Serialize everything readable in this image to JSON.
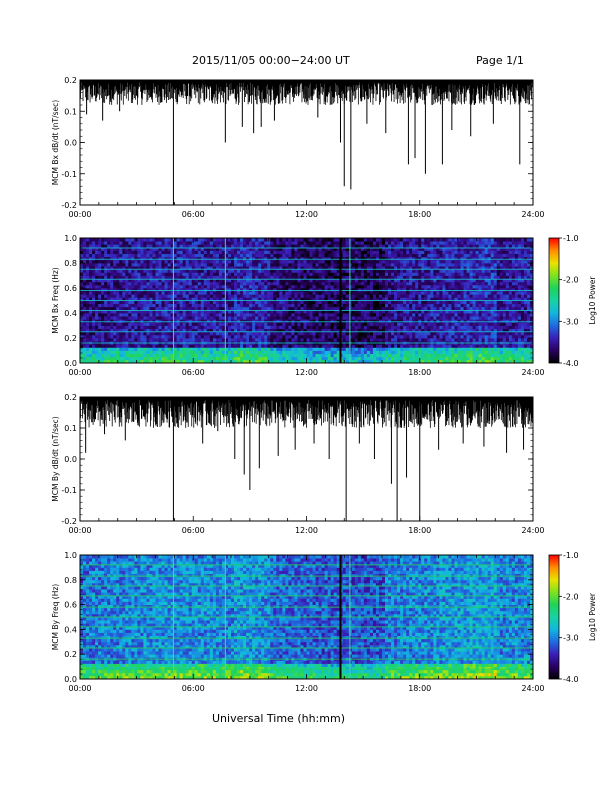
{
  "header": {
    "title": "2015/11/05  00:00−24:00 UT",
    "page": "Page 1/1",
    "xlabel": "Universal Time (hh:mm)"
  },
  "colors": {
    "trace": "#000000",
    "colorbar_stops": [
      "#000000",
      "#2a0060",
      "#3a1fb8",
      "#1f6be0",
      "#12b6e0",
      "#19d2a0",
      "#1fd35a",
      "#7fe21f",
      "#e9e300",
      "#ff8c00",
      "#ff0000"
    ]
  },
  "chart_data": [
    {
      "type": "line",
      "name": "bx-ddt",
      "ylabel": "MCM Bx dB/dt (nT/sec)",
      "xlim": [
        0,
        24
      ],
      "ylim": [
        -0.2,
        0.2
      ],
      "x_ticks": [
        "00:00",
        "06:00",
        "12:00",
        "18:00",
        "24:00"
      ],
      "y_ticks": [
        "-0.2",
        "-0.1",
        "0.0",
        "0.1",
        "0.2"
      ],
      "upper_envelope": 0.2,
      "typical_minimum": 0.12,
      "spikes": [
        {
          "t": 0.35,
          "y": 0.09
        },
        {
          "t": 1.2,
          "y": 0.07
        },
        {
          "t": 2.1,
          "y": 0.1
        },
        {
          "t": 4.95,
          "y": -0.2
        },
        {
          "t": 7.7,
          "y": 0.0
        },
        {
          "t": 8.6,
          "y": 0.05
        },
        {
          "t": 9.2,
          "y": 0.03
        },
        {
          "t": 9.6,
          "y": 0.05
        },
        {
          "t": 10.3,
          "y": 0.07
        },
        {
          "t": 12.6,
          "y": 0.08
        },
        {
          "t": 13.8,
          "y": 0.0
        },
        {
          "t": 14.0,
          "y": -0.14
        },
        {
          "t": 14.35,
          "y": -0.15
        },
        {
          "t": 15.2,
          "y": 0.06
        },
        {
          "t": 16.2,
          "y": 0.03
        },
        {
          "t": 17.4,
          "y": -0.07
        },
        {
          "t": 17.75,
          "y": -0.05
        },
        {
          "t": 18.3,
          "y": -0.1
        },
        {
          "t": 19.2,
          "y": -0.07
        },
        {
          "t": 19.7,
          "y": 0.04
        },
        {
          "t": 20.7,
          "y": 0.02
        },
        {
          "t": 21.9,
          "y": 0.06
        },
        {
          "t": 23.3,
          "y": -0.07
        }
      ]
    },
    {
      "type": "heatmap",
      "name": "bx-freq",
      "ylabel": "MCM Bx Freq (Hz)",
      "xlim": [
        0,
        24
      ],
      "ylim": [
        0.0,
        1.0
      ],
      "x_ticks": [
        "00:00",
        "06:00",
        "12:00",
        "18:00",
        "24:00"
      ],
      "y_ticks": [
        "0.0",
        "0.2",
        "0.4",
        "0.6",
        "0.8",
        "1.0"
      ],
      "colorbar": {
        "label": "Log10 Power",
        "range": [
          -4.0,
          -1.0
        ],
        "ticks": [
          "-1.0",
          "-2.0",
          "-3.0",
          "-4.0"
        ]
      },
      "typical_power": -3.6,
      "low_freq_power": -2.9,
      "harmonic_lines_hz": [
        0.16,
        0.25,
        0.33,
        0.42,
        0.5,
        0.58,
        0.67,
        0.75,
        0.83,
        0.92
      ],
      "vertical_events": [
        {
          "t": 4.95,
          "kind": "teal"
        },
        {
          "t": 7.7,
          "kind": "teal"
        },
        {
          "t": 13.8,
          "kind": "black"
        },
        {
          "t": 14.3,
          "kind": "teal"
        }
      ]
    },
    {
      "type": "line",
      "name": "by-ddt",
      "ylabel": "MCM By dB/dt (nT/sec)",
      "xlim": [
        0,
        24
      ],
      "ylim": [
        -0.2,
        0.2
      ],
      "x_ticks": [
        "00:00",
        "06:00",
        "12:00",
        "18:00",
        "24:00"
      ],
      "y_ticks": [
        "-0.2",
        "-0.1",
        "0.0",
        "0.1",
        "0.2"
      ],
      "upper_envelope": 0.2,
      "typical_minimum": 0.1,
      "spikes": [
        {
          "t": 0.3,
          "y": 0.02
        },
        {
          "t": 1.3,
          "y": 0.08
        },
        {
          "t": 2.4,
          "y": 0.06
        },
        {
          "t": 4.95,
          "y": -0.2
        },
        {
          "t": 6.5,
          "y": 0.05
        },
        {
          "t": 7.3,
          "y": 0.09
        },
        {
          "t": 8.2,
          "y": 0.0
        },
        {
          "t": 8.7,
          "y": -0.05
        },
        {
          "t": 9.0,
          "y": -0.1
        },
        {
          "t": 9.5,
          "y": -0.03
        },
        {
          "t": 10.5,
          "y": 0.01
        },
        {
          "t": 11.4,
          "y": 0.03
        },
        {
          "t": 12.4,
          "y": 0.05
        },
        {
          "t": 13.2,
          "y": 0.0
        },
        {
          "t": 14.1,
          "y": -0.2
        },
        {
          "t": 14.8,
          "y": 0.05
        },
        {
          "t": 15.6,
          "y": 0.0
        },
        {
          "t": 16.5,
          "y": -0.08
        },
        {
          "t": 16.8,
          "y": -0.2
        },
        {
          "t": 17.3,
          "y": -0.06
        },
        {
          "t": 18.0,
          "y": -0.2
        },
        {
          "t": 19.0,
          "y": 0.03
        },
        {
          "t": 20.3,
          "y": 0.05
        },
        {
          "t": 21.4,
          "y": 0.04
        },
        {
          "t": 22.6,
          "y": 0.02
        },
        {
          "t": 23.5,
          "y": 0.03
        }
      ]
    },
    {
      "type": "heatmap",
      "name": "by-freq",
      "ylabel": "MCM By Freq (Hz)",
      "xlim": [
        0,
        24
      ],
      "ylim": [
        0.0,
        1.0
      ],
      "x_ticks": [
        "00:00",
        "06:00",
        "12:00",
        "18:00",
        "24:00"
      ],
      "y_ticks": [
        "0.0",
        "0.2",
        "0.4",
        "0.6",
        "0.8",
        "1.0"
      ],
      "colorbar": {
        "label": "Log10 Power",
        "range": [
          -4.0,
          -1.0
        ],
        "ticks": [
          "-1.0",
          "-2.0",
          "-3.0",
          "-4.0"
        ]
      },
      "typical_power": -3.1,
      "low_freq_power": -2.6,
      "harmonic_lines_hz": [
        0.08,
        0.16,
        0.25,
        0.33,
        0.42,
        0.5,
        0.58,
        0.67,
        0.75,
        0.83,
        0.92
      ],
      "vertical_events": [
        {
          "t": 4.95,
          "kind": "teal"
        },
        {
          "t": 7.7,
          "kind": "teal"
        },
        {
          "t": 13.8,
          "kind": "black"
        },
        {
          "t": 14.3,
          "kind": "teal"
        }
      ]
    }
  ]
}
